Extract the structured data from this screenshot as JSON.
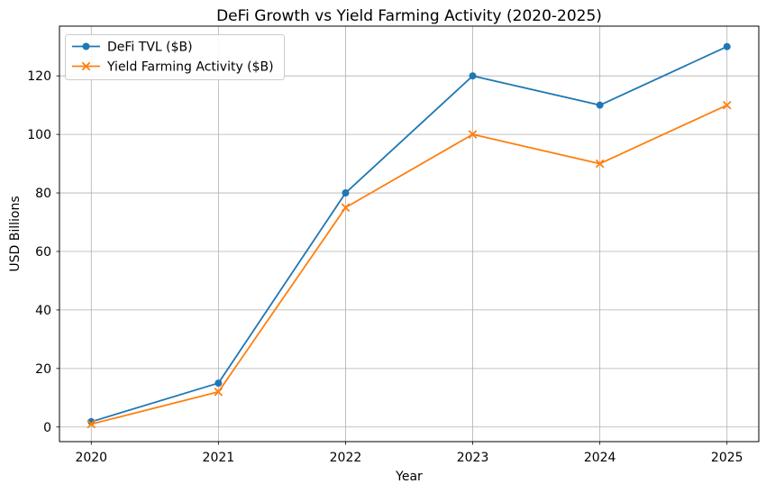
{
  "chart_data": {
    "type": "line",
    "title": "DeFi Growth vs Yield Farming Activity (2020-2025)",
    "xlabel": "Year",
    "ylabel": "USD Billions",
    "x": [
      2020,
      2021,
      2022,
      2023,
      2024,
      2025
    ],
    "xticklabels": [
      "2020",
      "2021",
      "2022",
      "2023",
      "2024",
      "2025"
    ],
    "yticks": [
      0,
      20,
      40,
      60,
      80,
      100,
      120
    ],
    "yticklabels": [
      "0",
      "20",
      "40",
      "60",
      "80",
      "100",
      "120"
    ],
    "xlim": [
      2019.75,
      2025.25
    ],
    "ylim": [
      -5,
      137
    ],
    "grid": true,
    "legend_position": "upper left",
    "series": [
      {
        "name": "DeFi TVL ($B)",
        "color": "#1f77b4",
        "marker": "circle",
        "values": [
          1.8,
          15,
          80,
          120,
          110,
          130
        ]
      },
      {
        "name": "Yield Farming Activity ($B)",
        "color": "#ff7f0e",
        "marker": "x",
        "values": [
          1,
          12,
          75,
          100,
          90,
          110
        ]
      }
    ],
    "colors": {
      "grid": "#b0b0b0",
      "spine": "#000000",
      "text": "#000000",
      "background": "#ffffff",
      "legend_border": "#cccccc"
    }
  }
}
